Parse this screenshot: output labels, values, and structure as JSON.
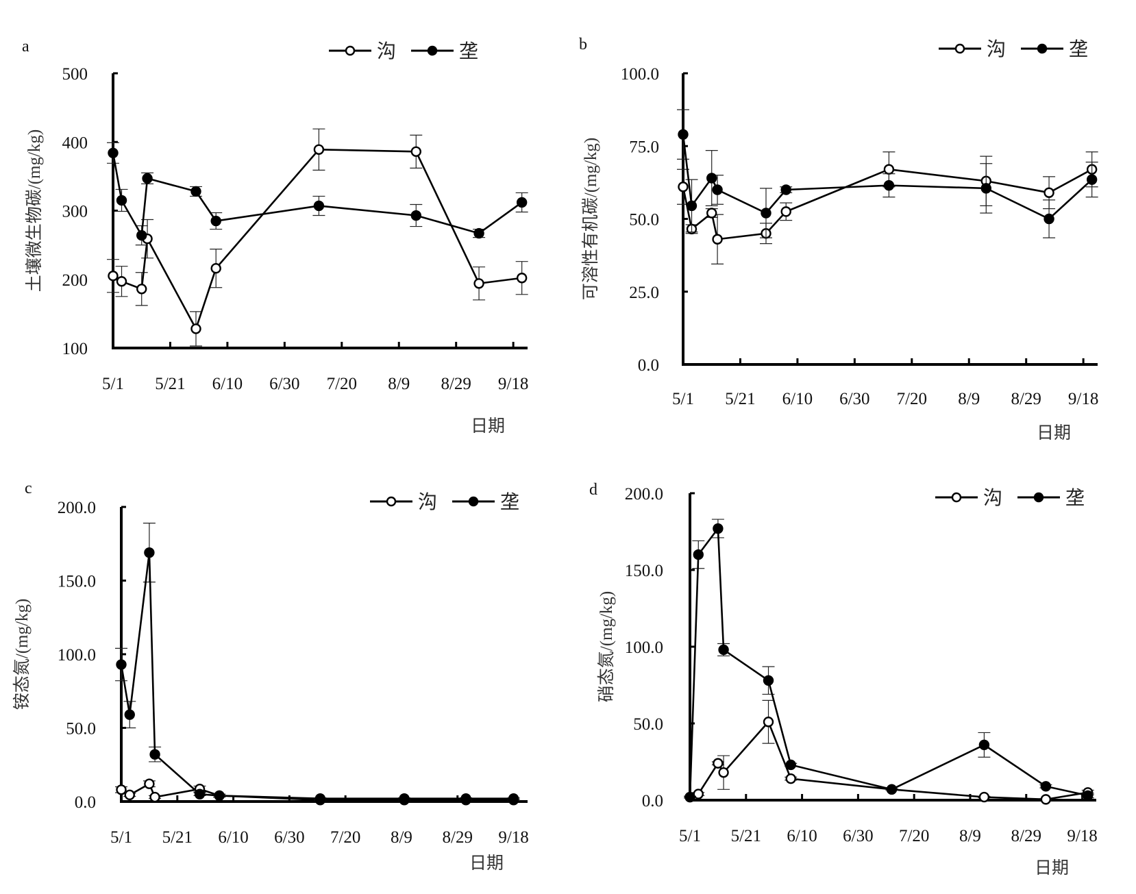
{
  "chart_data": [
    {
      "id": "a",
      "type": "line",
      "panel_label": "a",
      "title": "",
      "xlabel": "日期",
      "ylabel": "土壤微生物碳/(mg/kg)",
      "ylim": [
        100,
        500
      ],
      "yticks": [
        100,
        200,
        300,
        400,
        500
      ],
      "ytick_labels": [
        "100",
        "200",
        "300",
        "400",
        "500"
      ],
      "xticks_days": [
        0,
        20,
        40,
        60,
        80,
        100,
        120,
        140
      ],
      "xtick_labels": [
        "5/1",
        "5/21",
        "6/10",
        "6/30",
        "7/20",
        "8/9",
        "8/29",
        "9/18"
      ],
      "xlim_days": [
        0,
        145
      ],
      "legend": "top-right",
      "series": [
        {
          "name": "沟",
          "marker": "open-circle",
          "x_days": [
            0,
            3,
            10,
            12,
            29,
            36,
            72,
            106,
            128,
            143
          ],
          "values": [
            205,
            197,
            186,
            259,
            128,
            216,
            389,
            386,
            194,
            202
          ],
          "errors": [
            24,
            22,
            24,
            28,
            25,
            28,
            30,
            24,
            24,
            24
          ]
        },
        {
          "name": "垄",
          "marker": "filled-circle",
          "x_days": [
            0,
            3,
            10,
            12,
            29,
            36,
            72,
            106,
            128,
            143
          ],
          "values": [
            384,
            315,
            264,
            347,
            328,
            285,
            307,
            293,
            267,
            312
          ],
          "errors": [
            15,
            16,
            14,
            8,
            7,
            12,
            14,
            16,
            6,
            14
          ]
        }
      ]
    },
    {
      "id": "b",
      "type": "line",
      "panel_label": "b",
      "title": "",
      "xlabel": "日期",
      "ylabel": "可溶性有机碳/(mg/kg)",
      "ylim": [
        0,
        100
      ],
      "yticks": [
        0,
        25,
        50,
        75,
        100
      ],
      "ytick_labels": [
        "0.0",
        "25.0",
        "50.0",
        "75.0",
        "100.0"
      ],
      "xticks_days": [
        0,
        20,
        40,
        60,
        80,
        100,
        120,
        140
      ],
      "xtick_labels": [
        "5/1",
        "5/21",
        "6/10",
        "6/30",
        "7/20",
        "8/9",
        "8/29",
        "9/18"
      ],
      "xlim_days": [
        0,
        145
      ],
      "legend": "top-right",
      "series": [
        {
          "name": "沟",
          "marker": "open-circle",
          "x_days": [
            0,
            3,
            10,
            12,
            29,
            36,
            72,
            106,
            128,
            143
          ],
          "values": [
            61,
            46.5,
            52,
            43,
            45,
            52.5,
            67,
            63,
            59,
            67
          ],
          "errors": [
            6,
            1.5,
            1.5,
            8.5,
            3.5,
            3,
            6,
            8.5,
            5.5,
            6
          ]
        },
        {
          "name": "垄",
          "marker": "filled-circle",
          "x_days": [
            0,
            3,
            10,
            12,
            29,
            36,
            72,
            106,
            128,
            143
          ],
          "values": [
            79,
            54.5,
            64,
            60,
            52,
            60,
            61.5,
            60.5,
            50,
            63.5
          ],
          "errors": [
            8.5,
            9,
            9.5,
            5,
            8.5,
            1,
            4,
            8.5,
            6.5,
            6
          ]
        }
      ]
    },
    {
      "id": "c",
      "type": "line",
      "panel_label": "c",
      "title": "",
      "xlabel": "日期",
      "ylabel": "铵态氮/(mg/kg)",
      "ylim": [
        0,
        200
      ],
      "yticks": [
        0,
        50,
        100,
        150,
        200
      ],
      "ytick_labels": [
        "0.0",
        "50.0",
        "100.0",
        "150.0",
        "200.0"
      ],
      "xticks_days": [
        0,
        20,
        40,
        60,
        80,
        100,
        120,
        140
      ],
      "xtick_labels": [
        "5/1",
        "5/21",
        "6/10",
        "6/30",
        "7/20",
        "8/9",
        "8/29",
        "9/18"
      ],
      "xlim_days": [
        0,
        145
      ],
      "legend": "top-right",
      "series": [
        {
          "name": "沟",
          "marker": "open-circle",
          "x_days": [
            0,
            3,
            10,
            12,
            28,
            35,
            71,
            101,
            123,
            140
          ],
          "values": [
            8,
            4.5,
            12,
            3,
            8.5,
            4,
            1,
            1,
            1,
            1
          ],
          "errors": [
            2,
            1,
            2,
            1,
            2,
            1,
            0.5,
            0.5,
            0.5,
            0.5
          ]
        },
        {
          "name": "垄",
          "marker": "filled-circle",
          "x_days": [
            0,
            3,
            10,
            12,
            28,
            35,
            71,
            101,
            123,
            140
          ],
          "values": [
            93,
            59,
            169,
            32,
            5,
            4,
            2,
            2,
            2,
            2
          ],
          "errors": [
            11,
            9,
            20,
            5,
            1,
            1,
            0.5,
            0.5,
            0.5,
            0.5
          ]
        }
      ]
    },
    {
      "id": "d",
      "type": "line",
      "panel_label": "d",
      "title": "",
      "xlabel": "日期",
      "ylabel": "硝态氮/(mg/kg)",
      "ylim": [
        0,
        200
      ],
      "yticks": [
        0,
        50,
        100,
        150,
        200
      ],
      "ytick_labels": [
        "0.0",
        "50.0",
        "100.0",
        "150.0",
        "200.0"
      ],
      "xticks_days": [
        0,
        20,
        40,
        60,
        80,
        100,
        120,
        140
      ],
      "xtick_labels": [
        "5/1",
        "5/21",
        "6/10",
        "6/30",
        "7/20",
        "8/9",
        "8/29",
        "9/18"
      ],
      "xlim_days": [
        0,
        145
      ],
      "legend": "top-right",
      "series": [
        {
          "name": "沟",
          "marker": "open-circle",
          "x_days": [
            0,
            3,
            10,
            12,
            28,
            36,
            72,
            105,
            127,
            142
          ],
          "values": [
            2,
            4,
            24,
            18,
            51,
            14,
            7,
            2,
            0.5,
            5
          ],
          "errors": [
            0.5,
            1,
            1,
            11,
            14,
            1,
            0.5,
            0.5,
            0.5,
            1.5
          ]
        },
        {
          "name": "垄",
          "marker": "filled-circle",
          "x_days": [
            0,
            3,
            10,
            12,
            28,
            36,
            72,
            105,
            127,
            142
          ],
          "values": [
            2,
            160,
            177,
            98,
            78,
            23,
            7,
            36,
            9,
            3
          ],
          "errors": [
            0.5,
            9,
            6,
            4,
            9,
            1,
            0.5,
            8,
            1,
            1.5
          ]
        }
      ]
    }
  ]
}
